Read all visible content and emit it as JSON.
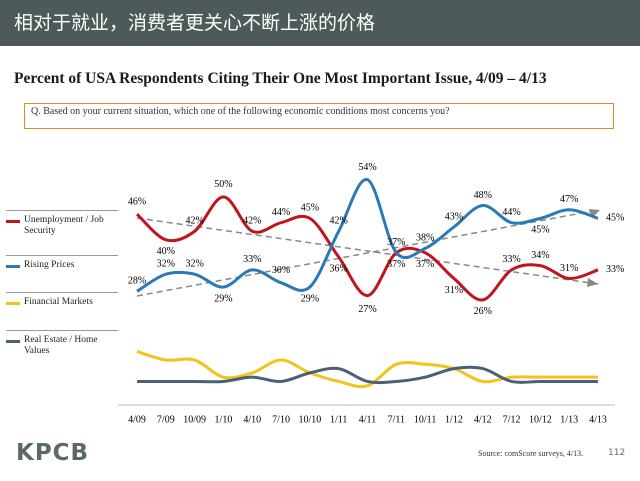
{
  "header": {
    "title": "相对于就业，消费者更关心不断上涨的价格"
  },
  "chart_data": {
    "type": "line",
    "title": "Percent of USA Respondents Citing Their One Most Important Issue, 4/09 – 4/13",
    "subtitle": "Q. Based on your current situation, which one of the following economic conditions most concerns you?",
    "categories": [
      "4/09",
      "7/09",
      "10/09",
      "1/10",
      "4/10",
      "7/10",
      "10/10",
      "1/11",
      "4/11",
      "7/11",
      "10/11",
      "1/12",
      "4/12",
      "7/12",
      "10/12",
      "1/13",
      "4/13"
    ],
    "ylim": [
      0,
      60
    ],
    "series": [
      {
        "name": "Unemployment / Job Security",
        "color": "#c0161b",
        "values": [
          46,
          40,
          42,
          50,
          42,
          44,
          45,
          36,
          27,
          37,
          37,
          31,
          26,
          33,
          34,
          31,
          33
        ],
        "value_labels": [
          "46%",
          "40%",
          "42%",
          "50%",
          "42%",
          "44%",
          "45%",
          "36%",
          "27%",
          "37%",
          "37%",
          "31%",
          "26%",
          "33%",
          "34%",
          "31%",
          "33%"
        ]
      },
      {
        "name": "Rising Prices",
        "color": "#2a7ab8",
        "values": [
          28,
          32,
          32,
          29,
          33,
          30,
          29,
          42,
          54,
          37,
          38,
          43,
          48,
          44,
          45,
          47,
          45
        ],
        "value_labels": [
          "28%",
          "32%",
          "32%",
          "29%",
          "33%",
          "30%",
          "29%",
          "42%",
          "54%",
          "37%",
          "38%",
          "43%",
          "48%",
          "44%",
          "45%",
          "47%",
          "45%"
        ]
      },
      {
        "name": "Financial Markets",
        "color": "#f2c31a",
        "values": [
          14,
          12,
          12,
          8,
          9,
          12,
          9,
          7,
          6,
          11,
          11,
          10,
          7,
          8,
          8,
          8,
          8
        ]
      },
      {
        "name": "Real Estate / Home Values",
        "color": "#4a6078",
        "values": [
          7,
          7,
          7,
          7,
          8,
          7,
          9,
          10,
          7,
          7,
          8,
          10,
          10,
          7,
          7,
          7,
          7
        ]
      }
    ]
  },
  "footer": {
    "logo": "KPCB",
    "source": "Source: comScore surveys, 4/13.",
    "page": "112"
  }
}
